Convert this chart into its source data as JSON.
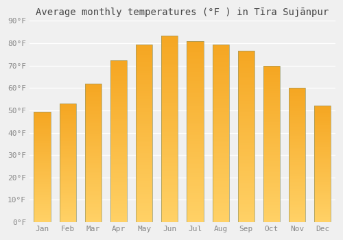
{
  "title": "Average monthly temperatures (°F ) in Tīra Sujānpur",
  "months": [
    "Jan",
    "Feb",
    "Mar",
    "Apr",
    "May",
    "Jun",
    "Jul",
    "Aug",
    "Sep",
    "Oct",
    "Nov",
    "Dec"
  ],
  "values": [
    49.5,
    53,
    62,
    72.5,
    79.5,
    83.5,
    81,
    79.5,
    76.5,
    70,
    60,
    52
  ],
  "bar_color_top": "#F5A623",
  "bar_color_bottom": "#FFD166",
  "bar_edge_color": "#888844",
  "ylim": [
    0,
    90
  ],
  "yticks": [
    0,
    10,
    20,
    30,
    40,
    50,
    60,
    70,
    80,
    90
  ],
  "background_color": "#f0f0f0",
  "grid_color": "#ffffff",
  "title_fontsize": 10,
  "tick_fontsize": 8,
  "tick_color": "#888888"
}
